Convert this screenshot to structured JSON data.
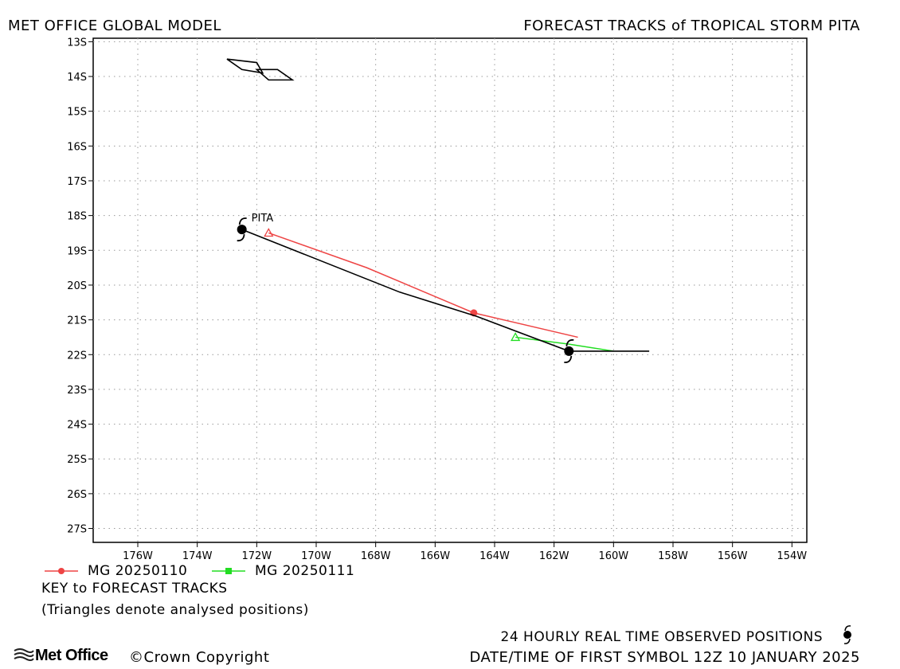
{
  "header": {
    "left_title": "MET OFFICE GLOBAL MODEL",
    "right_title": "FORECAST TRACKS of TROPICAL STORM PITA"
  },
  "chart_data": {
    "type": "map",
    "title": "FORECAST TRACKS of TROPICAL STORM PITA",
    "xlim": [
      -177.5,
      -153.5
    ],
    "ylim": [
      -27.4,
      -12.9
    ],
    "x_ticks": [
      {
        "v": -176,
        "label": "176W"
      },
      {
        "v": -174,
        "label": "174W"
      },
      {
        "v": -172,
        "label": "172W"
      },
      {
        "v": -170,
        "label": "170W"
      },
      {
        "v": -168,
        "label": "168W"
      },
      {
        "v": -166,
        "label": "166W"
      },
      {
        "v": -164,
        "label": "164W"
      },
      {
        "v": -162,
        "label": "162W"
      },
      {
        "v": -160,
        "label": "160W"
      },
      {
        "v": -158,
        "label": "158W"
      },
      {
        "v": -156,
        "label": "156W"
      },
      {
        "v": -154,
        "label": "154W"
      }
    ],
    "y_ticks": [
      {
        "v": -13,
        "label": "13S"
      },
      {
        "v": -14,
        "label": "14S"
      },
      {
        "v": -15,
        "label": "15S"
      },
      {
        "v": -16,
        "label": "16S"
      },
      {
        "v": -17,
        "label": "17S"
      },
      {
        "v": -18,
        "label": "18S"
      },
      {
        "v": -19,
        "label": "19S"
      },
      {
        "v": -20,
        "label": "20S"
      },
      {
        "v": -21,
        "label": "21S"
      },
      {
        "v": -22,
        "label": "22S"
      },
      {
        "v": -23,
        "label": "23S"
      },
      {
        "v": -24,
        "label": "24S"
      },
      {
        "v": -25,
        "label": "25S"
      },
      {
        "v": -26,
        "label": "26S"
      },
      {
        "v": -27,
        "label": "27S"
      }
    ],
    "grid": true,
    "storm_name": "PITA",
    "observed_track": {
      "points": [
        [
          -172.5,
          -18.4
        ],
        [
          -167.2,
          -20.2
        ],
        [
          -164.6,
          -20.9
        ],
        [
          -161.5,
          -21.9
        ],
        [
          -158.8,
          -21.9
        ]
      ],
      "symbols": [
        [
          -172.5,
          -18.4
        ],
        [
          -161.5,
          -21.9
        ]
      ],
      "color": "#000000"
    },
    "series": [
      {
        "name": "MG 20250110",
        "color": "#ee4444",
        "points": [
          [
            -171.6,
            -18.5
          ],
          [
            -168.3,
            -19.5
          ],
          [
            -164.7,
            -20.8
          ],
          [
            -161.2,
            -21.5
          ]
        ],
        "analysed": [
          -171.6,
          -18.5
        ],
        "marker": [
          -164.7,
          -20.8
        ]
      },
      {
        "name": "MG 20250111",
        "color": "#22dd22",
        "points": [
          [
            -163.3,
            -21.5
          ],
          [
            -161.5,
            -21.7
          ],
          [
            -160.0,
            -21.9
          ]
        ],
        "analysed": [
          -163.3,
          -21.5
        ]
      }
    ],
    "land": [
      [
        [
          -173.0,
          -13.5
        ],
        [
          -172.5,
          -13.8
        ],
        [
          -171.8,
          -13.9
        ],
        [
          -172.0,
          -13.6
        ],
        [
          -173.0,
          -13.5
        ]
      ],
      [
        [
          -172.0,
          -13.8
        ],
        [
          -171.6,
          -14.1
        ],
        [
          -170.8,
          -14.1
        ],
        [
          -171.3,
          -13.8
        ],
        [
          -172.0,
          -13.8
        ]
      ]
    ]
  },
  "legend": {
    "items": [
      {
        "label": "MG 20250110",
        "color": "#ee4444"
      },
      {
        "label": "MG 20250111",
        "color": "#22dd22"
      }
    ],
    "key_title": "KEY to FORECAST TRACKS",
    "key_note": "(Triangles denote analysed positions)"
  },
  "footer": {
    "logo": "Met Office",
    "copyright": "©Crown Copyright",
    "observed": "24 HOURLY REAL TIME OBSERVED POSITIONS",
    "datetime": "DATE/TIME OF FIRST SYMBOL 12Z 10 JANUARY 2025"
  }
}
